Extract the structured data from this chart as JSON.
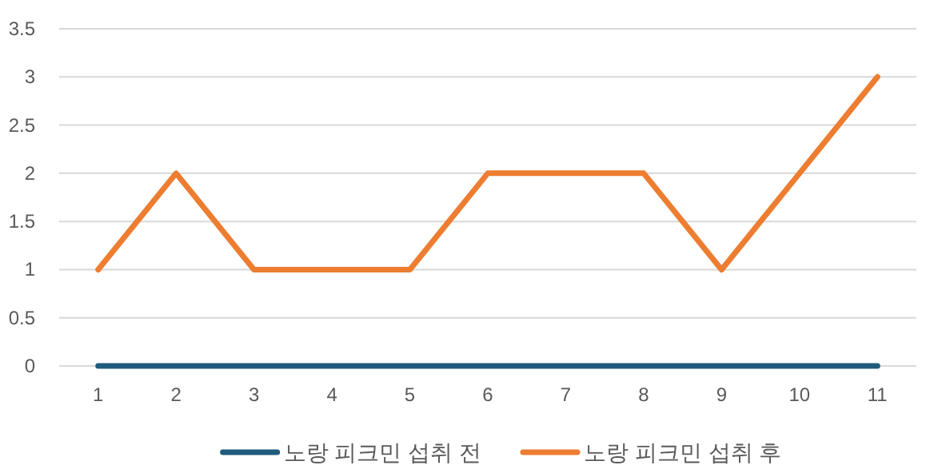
{
  "chart_data": {
    "type": "line",
    "categories": [
      "1",
      "2",
      "3",
      "4",
      "5",
      "6",
      "7",
      "8",
      "9",
      "10",
      "11"
    ],
    "series": [
      {
        "name": "노랑 피크민 섭취 전",
        "color": "#1f5b7d",
        "values": [
          0,
          0,
          0,
          0,
          0,
          0,
          0,
          0,
          0,
          0,
          0
        ]
      },
      {
        "name": "노랑 피크민 섭취 후",
        "color": "#ed7d31",
        "values": [
          1,
          2,
          1,
          1,
          1,
          2,
          2,
          2,
          1,
          2,
          3
        ]
      }
    ],
    "ylim": [
      0,
      3.5
    ],
    "yticks": [
      0,
      0.5,
      1,
      1.5,
      2,
      2.5,
      3,
      3.5
    ],
    "grid": "y",
    "legend": "bottom",
    "marker": "none",
    "line_style": "solid"
  }
}
